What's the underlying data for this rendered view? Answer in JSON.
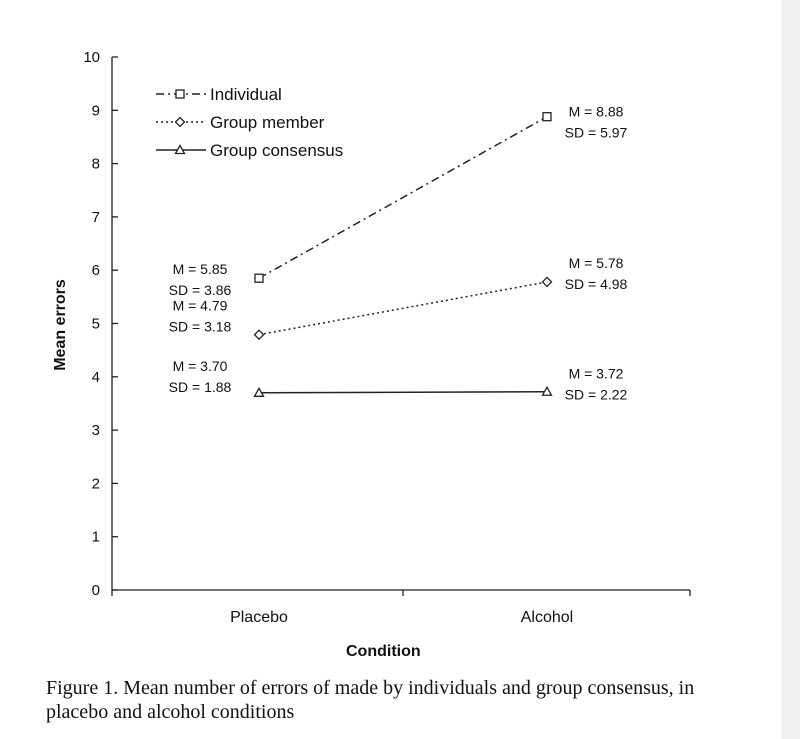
{
  "chart_data": {
    "type": "line",
    "xlabel": "Condition",
    "ylabel": "Mean errors",
    "categories": [
      "Placebo",
      "Alcohol"
    ],
    "ylim": [
      0,
      10
    ],
    "yticks": [
      "0",
      "1",
      "2",
      "3",
      "4",
      "5",
      "6",
      "7",
      "8",
      "9",
      "10"
    ],
    "grid": false,
    "legend_position": "top-left",
    "series": [
      {
        "name": "Individual",
        "values": [
          5.85,
          8.88
        ],
        "marker": "square",
        "dash": "dash-dot",
        "annotations": [
          {
            "m": "M = 5.85",
            "sd": "SD = 3.86"
          },
          {
            "m": "M = 8.88",
            "sd": "SD = 5.97"
          }
        ]
      },
      {
        "name": "Group member",
        "values": [
          4.79,
          5.78
        ],
        "marker": "diamond",
        "dash": "dotted",
        "annotations": [
          {
            "m": "M = 4.79",
            "sd": "SD = 3.18"
          },
          {
            "m": "M = 5.78",
            "sd": "SD = 4.98"
          }
        ]
      },
      {
        "name": "Group consensus",
        "values": [
          3.7,
          3.72
        ],
        "marker": "triangle",
        "dash": "solid",
        "annotations": [
          {
            "m": "M = 3.70",
            "sd": "SD = 1.88"
          },
          {
            "m": "M = 3.72",
            "sd": "SD = 2.22"
          }
        ]
      }
    ]
  },
  "caption": "Figure 1. Mean number of errors of made by individuals and group consensus, in placebo and alcohol conditions"
}
